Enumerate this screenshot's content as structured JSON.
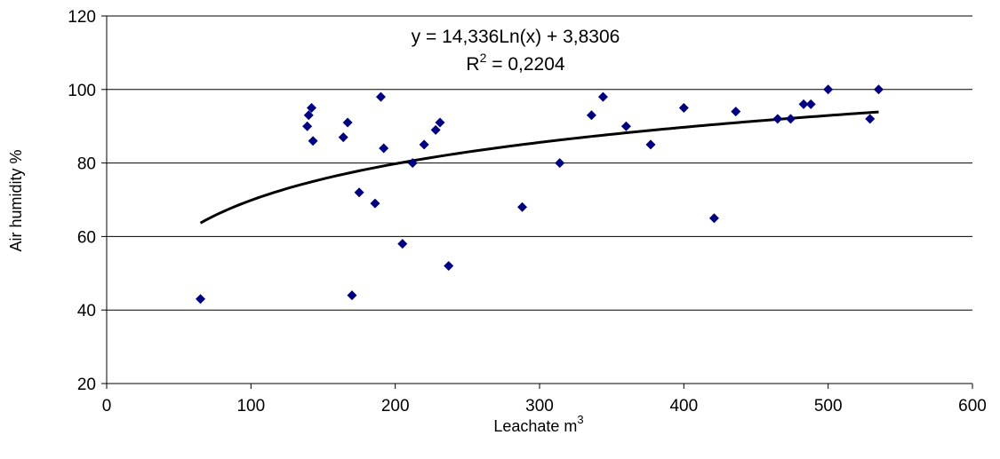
{
  "chart_data": {
    "type": "scatter",
    "title": "",
    "xlabel_text": "Leachate m",
    "xlabel_sup": "3",
    "ylabel": "Air humidity %",
    "xlim": [
      0,
      600
    ],
    "ylim": [
      20,
      120
    ],
    "xticks": [
      0,
      100,
      200,
      300,
      400,
      500,
      600
    ],
    "yticks": [
      20,
      40,
      60,
      80,
      100,
      120
    ],
    "xtick_labels": [
      "0",
      "100",
      "200",
      "300",
      "400",
      "500",
      "600"
    ],
    "ytick_labels": [
      "20",
      "40",
      "60",
      "80",
      "100",
      "120"
    ],
    "grid": "horizontal",
    "marker_color": "#000080",
    "trend_color": "#000000",
    "points": [
      {
        "x": 65,
        "y": 43
      },
      {
        "x": 139,
        "y": 90
      },
      {
        "x": 140,
        "y": 93
      },
      {
        "x": 142,
        "y": 95
      },
      {
        "x": 143,
        "y": 86
      },
      {
        "x": 164,
        "y": 87
      },
      {
        "x": 167,
        "y": 91
      },
      {
        "x": 170,
        "y": 44
      },
      {
        "x": 175,
        "y": 72
      },
      {
        "x": 186,
        "y": 69
      },
      {
        "x": 190,
        "y": 98
      },
      {
        "x": 192,
        "y": 84
      },
      {
        "x": 205,
        "y": 58
      },
      {
        "x": 212,
        "y": 80
      },
      {
        "x": 220,
        "y": 85
      },
      {
        "x": 228,
        "y": 89
      },
      {
        "x": 231,
        "y": 91
      },
      {
        "x": 237,
        "y": 52
      },
      {
        "x": 288,
        "y": 68
      },
      {
        "x": 314,
        "y": 80
      },
      {
        "x": 336,
        "y": 93
      },
      {
        "x": 344,
        "y": 98
      },
      {
        "x": 360,
        "y": 90
      },
      {
        "x": 377,
        "y": 85
      },
      {
        "x": 400,
        "y": 95
      },
      {
        "x": 421,
        "y": 65
      },
      {
        "x": 436,
        "y": 94
      },
      {
        "x": 465,
        "y": 92
      },
      {
        "x": 474,
        "y": 92
      },
      {
        "x": 483,
        "y": 96
      },
      {
        "x": 488,
        "y": 96
      },
      {
        "x": 500,
        "y": 100
      },
      {
        "x": 529,
        "y": 92
      },
      {
        "x": 535,
        "y": 100
      }
    ],
    "trendline": {
      "type": "logarithmic",
      "a": 14.336,
      "b": 3.8306,
      "x_range": [
        65,
        535
      ]
    },
    "equation_text": "y = 14,336Ln(x) + 3,8306",
    "r2_label": "R",
    "r2_sup": "2",
    "r2_value_text": " = 0,2204"
  }
}
